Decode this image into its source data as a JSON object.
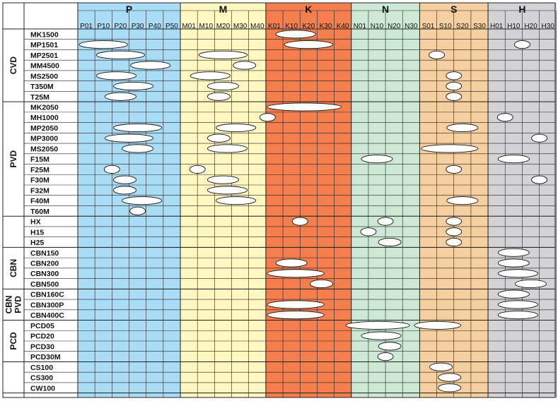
{
  "chart_data": {
    "type": "table",
    "bands": [
      {
        "letter": "P",
        "color": "#aadcf6",
        "ticks": [
          "P01",
          "P10",
          "P20",
          "P30",
          "P40",
          "P50"
        ]
      },
      {
        "letter": "M",
        "color": "#fff7c2",
        "ticks": [
          "M01",
          "M10",
          "M20",
          "M30",
          "M40"
        ]
      },
      {
        "letter": "K",
        "color": "#f57e4e",
        "ticks": [
          "K01",
          "K10",
          "K20",
          "K30",
          "K40"
        ]
      },
      {
        "letter": "N",
        "color": "#cde9d6",
        "ticks": [
          "N01",
          "N10",
          "N20",
          "N30"
        ]
      },
      {
        "letter": "S",
        "color": "#f6cfa0",
        "ticks": [
          "S01",
          "S10",
          "S20",
          "S30"
        ]
      },
      {
        "letter": "H",
        "color": "#d3d3d6",
        "ticks": [
          "H01",
          "H10",
          "H20",
          "H30"
        ]
      }
    ],
    "groups": [
      {
        "label": "CVD",
        "grades": [
          {
            "name": "MK1500",
            "ranges": [
              [
                "K",
                "K10",
                "K25"
              ]
            ]
          },
          {
            "name": "MP1501",
            "ranges": [
              [
                "P",
                "P05",
                "P25"
              ],
              [
                "K",
                "K15",
                "K35"
              ],
              [
                "H",
                "H20",
                "H20"
              ]
            ]
          },
          {
            "name": "MP2501",
            "ranges": [
              [
                "P",
                "P15",
                "P35"
              ],
              [
                "M",
                "M15",
                "M35"
              ],
              [
                "S",
                "S10",
                "S10"
              ]
            ]
          },
          {
            "name": "MM4500",
            "ranges": [
              [
                "P",
                "P35",
                "P50"
              ],
              [
                "M",
                "M35",
                "M40"
              ]
            ]
          },
          {
            "name": "MS2500",
            "ranges": [
              [
                "P",
                "P15",
                "P30"
              ],
              [
                "M",
                "M10",
                "M25"
              ],
              [
                "S",
                "S20",
                "S20"
              ]
            ]
          },
          {
            "name": "T350M",
            "ranges": [
              [
                "P",
                "P25",
                "P40"
              ],
              [
                "M",
                "M20",
                "M30"
              ],
              [
                "S",
                "S20",
                "S20"
              ]
            ]
          },
          {
            "name": "T25M",
            "ranges": [
              [
                "P",
                "P20",
                "P30"
              ],
              [
                "M",
                "M20",
                "M25"
              ],
              [
                "S",
                "S20",
                "S20"
              ]
            ]
          }
        ]
      },
      {
        "label": "PVD",
        "grades": [
          {
            "name": "MK2050",
            "ranges": [
              [
                "K",
                "K05",
                "K40"
              ]
            ]
          },
          {
            "name": "MH1000",
            "ranges": [
              [
                "K",
                "K01",
                "K01"
              ],
              [
                "H",
                "H10",
                "H10"
              ]
            ]
          },
          {
            "name": "MP2050",
            "ranges": [
              [
                "P",
                "P25",
                "P45"
              ],
              [
                "M",
                "M25",
                "M40"
              ],
              [
                "S",
                "S20",
                "S30"
              ]
            ]
          },
          {
            "name": "MP3000",
            "ranges": [
              [
                "P",
                "P20",
                "P40"
              ],
              [
                "M",
                "M20",
                "M25"
              ],
              [
                "H",
                "H30",
                "H30"
              ]
            ]
          },
          {
            "name": "MS2050",
            "ranges": [
              [
                "P",
                "P30",
                "P40"
              ],
              [
                "M",
                "M20",
                "M35"
              ],
              [
                "S",
                "S05",
                "S30"
              ]
            ]
          },
          {
            "name": "F15M",
            "ranges": [
              [
                "N",
                "N10",
                "N20"
              ],
              [
                "H",
                "H10",
                "H20"
              ]
            ]
          },
          {
            "name": "F25M",
            "ranges": [
              [
                "P",
                "P20",
                "P20"
              ],
              [
                "M",
                "M10",
                "M10"
              ],
              [
                "S",
                "S20",
                "S20"
              ]
            ]
          },
          {
            "name": "F30M",
            "ranges": [
              [
                "P",
                "P25",
                "P30"
              ],
              [
                "M",
                "M20",
                "M30"
              ],
              [
                "H",
                "H30",
                "H30"
              ]
            ]
          },
          {
            "name": "F32M",
            "ranges": [
              [
                "P",
                "P25",
                "P30"
              ],
              [
                "M",
                "M20",
                "M35"
              ]
            ]
          },
          {
            "name": "F40M",
            "ranges": [
              [
                "P",
                "P30",
                "P45"
              ],
              [
                "M",
                "M25",
                "M40"
              ],
              [
                "S",
                "S20",
                "S30"
              ]
            ]
          },
          {
            "name": "T60M",
            "ranges": [
              [
                "P",
                "P35",
                "P35"
              ]
            ]
          }
        ]
      },
      {
        "label": "",
        "grades": [
          {
            "name": "HX",
            "ranges": [
              [
                "K",
                "K20",
                "K20"
              ],
              [
                "N",
                "N20",
                "N20"
              ],
              [
                "S",
                "S20",
                "S20"
              ]
            ]
          },
          {
            "name": "H15",
            "ranges": [
              [
                "N",
                "N10",
                "N10"
              ],
              [
                "S",
                "S20",
                "S20"
              ]
            ]
          },
          {
            "name": "H25",
            "ranges": [
              [
                "N",
                "N20",
                "N25"
              ],
              [
                "S",
                "S20",
                "S20"
              ]
            ]
          }
        ]
      },
      {
        "label": "CBN",
        "grades": [
          {
            "name": "CBN150",
            "ranges": [
              [
                "H",
                "H10",
                "H20"
              ]
            ]
          },
          {
            "name": "CBN200",
            "ranges": [
              [
                "K",
                "K10",
                "K20"
              ],
              [
                "H",
                "H10",
                "H20"
              ]
            ]
          },
          {
            "name": "CBN300",
            "ranges": [
              [
                "K",
                "K05",
                "K30"
              ],
              [
                "H",
                "H10",
                "H25"
              ]
            ]
          },
          {
            "name": "CBN500",
            "ranges": [
              [
                "K",
                "K30",
                "K35"
              ],
              [
                "H",
                "H20",
                "H30"
              ]
            ]
          }
        ]
      },
      {
        "label": "CBN PVD",
        "grades": [
          {
            "name": "CBN160C",
            "ranges": [
              [
                "H",
                "H10",
                "H20"
              ]
            ]
          },
          {
            "name": "CBN300P",
            "ranges": [
              [
                "K",
                "K05",
                "K30"
              ],
              [
                "H",
                "H10",
                "H25"
              ]
            ]
          },
          {
            "name": "CBN400C",
            "ranges": [
              [
                "K",
                "K05",
                "K30"
              ],
              [
                "H",
                "H10",
                "H25"
              ]
            ]
          }
        ]
      },
      {
        "label": "PCD",
        "grades": [
          {
            "name": "PCD05",
            "ranges": [
              [
                "N",
                "N01",
                "N30"
              ],
              [
                "S",
                "S01",
                "S20"
              ]
            ]
          },
          {
            "name": "PCD20",
            "ranges": [
              [
                "N",
                "N10",
                "N25"
              ]
            ]
          },
          {
            "name": "PCD30",
            "ranges": [
              [
                "N",
                "N20",
                "N25"
              ]
            ]
          },
          {
            "name": "PCD30M",
            "ranges": [
              [
                "N",
                "N20",
                "N20"
              ]
            ]
          }
        ]
      },
      {
        "label": "",
        "grades": [
          {
            "name": "CS100",
            "ranges": [
              [
                "S",
                "S10",
                "S15"
              ]
            ]
          },
          {
            "name": "CS300",
            "ranges": [
              [
                "S",
                "S15",
                "S20"
              ]
            ]
          },
          {
            "name": "CW100",
            "ranges": [
              [
                "S",
                "S15",
                "S20"
              ]
            ]
          }
        ]
      }
    ]
  }
}
